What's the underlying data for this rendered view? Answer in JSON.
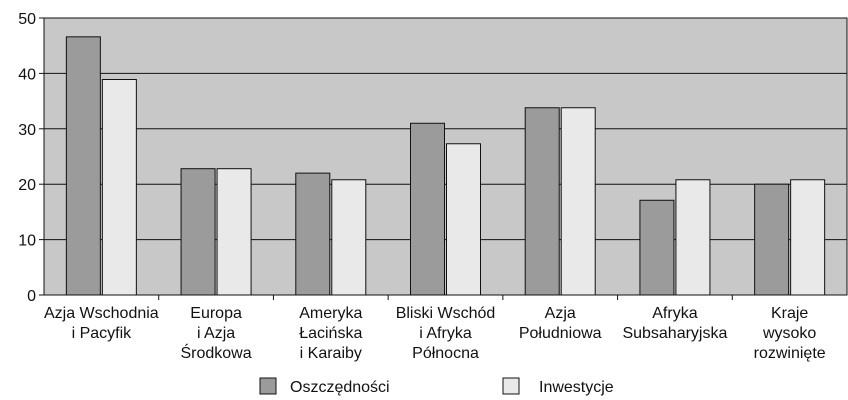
{
  "chart_data": {
    "type": "bar",
    "categories": [
      [
        "Azja Wschodnia",
        "i Pacyfik"
      ],
      [
        "Europa",
        "i Azja",
        "Środkowa"
      ],
      [
        "Ameryka",
        "Łacińska",
        "i Karaiby"
      ],
      [
        "Bliski Wschód",
        "i Afryka",
        "Północna"
      ],
      [
        "Azja",
        "Południowa"
      ],
      [
        "Afryka",
        "Subsaharyjska"
      ],
      [
        "Kraje",
        "wysoko",
        "rozwinięte"
      ]
    ],
    "series": [
      {
        "name": "Oszczędności",
        "values": [
          46.6,
          22.8,
          22.0,
          31.0,
          33.8,
          17.1,
          20.0
        ]
      },
      {
        "name": "Inwestycje",
        "values": [
          38.9,
          22.8,
          20.8,
          27.3,
          33.8,
          20.8,
          20.8
        ]
      }
    ],
    "ylim": [
      0,
      50
    ],
    "yticks": [
      0,
      10,
      20,
      30,
      40,
      50
    ],
    "grid": true,
    "legend_placement": "bottom-center"
  },
  "colors": {
    "plot_background": "#c8c8c8",
    "series_1": "#9b9b9b",
    "series_2": "#e9e9e9",
    "outline": "#111111"
  }
}
